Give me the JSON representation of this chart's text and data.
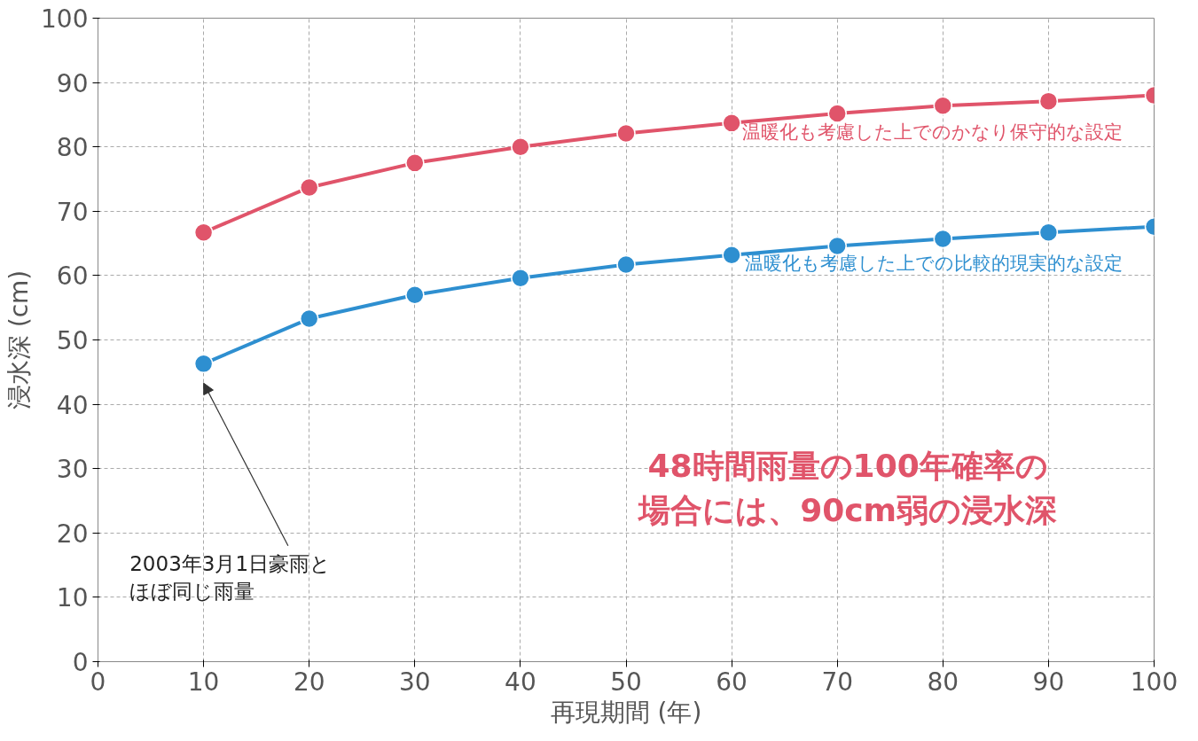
{
  "chart_data": {
    "type": "line",
    "xlabel": "再現期間 (年)",
    "ylabel": "浸水深 (cm)",
    "x": [
      10,
      20,
      30,
      40,
      50,
      60,
      70,
      80,
      90,
      100
    ],
    "series": [
      {
        "name": "温暖化も考慮した上でのかなり保守的な設定",
        "color": "#e0546a",
        "values": [
          66.7,
          73.7,
          77.5,
          80.0,
          82.1,
          83.7,
          85.2,
          86.4,
          87.1,
          88.0
        ]
      },
      {
        "name": "温暖化も考慮した上での比較的現実的な設定",
        "color": "#2e8fd0",
        "values": [
          46.3,
          53.3,
          57.0,
          59.6,
          61.7,
          63.2,
          64.6,
          65.7,
          66.7,
          67.6
        ]
      }
    ],
    "xlim": [
      0,
      100
    ],
    "ylim": [
      0,
      100
    ],
    "xticks": [
      0,
      10,
      20,
      30,
      40,
      50,
      60,
      70,
      80,
      90,
      100
    ],
    "yticks": [
      0,
      10,
      20,
      30,
      40,
      50,
      60,
      70,
      80,
      90,
      100
    ],
    "grid": true,
    "marker": "circle",
    "line_style": "solid",
    "annotations": [
      "2003年3月1日豪雨とほぼ同じ雨量",
      "48時間雨量の100年確率の場合には、90cm弱の浸水深"
    ]
  }
}
